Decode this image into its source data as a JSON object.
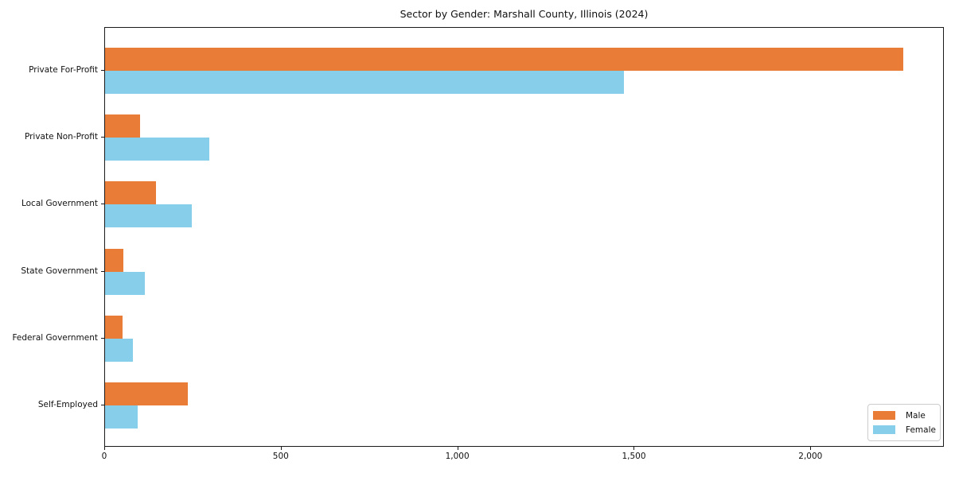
{
  "chart_data": {
    "type": "bar",
    "orientation": "horizontal",
    "title": "Sector by Gender: Marshall County, Illinois (2024)",
    "categories": [
      "Private For-Profit",
      "Private Non-Profit",
      "Local Government",
      "State Government",
      "Federal Government",
      "Self-Employed"
    ],
    "series": [
      {
        "name": "Male",
        "color": "#e97c36",
        "values": [
          2260,
          100,
          145,
          51,
          49,
          234
        ]
      },
      {
        "name": "Female",
        "color": "#87ceeb",
        "values": [
          1470,
          295,
          245,
          113,
          80,
          92
        ]
      }
    ],
    "xlabel": "",
    "ylabel": "",
    "xlim": [
      0,
      2378
    ],
    "x_ticks": [
      0,
      500,
      1000,
      1500,
      2000
    ],
    "x_tick_labels": [
      "0",
      "500",
      "1,000",
      "1,500",
      "2,000"
    ],
    "grid": false,
    "legend_position": "lower-right",
    "legend_entries": [
      "Male",
      "Female"
    ],
    "background_color": "#ffffff",
    "spine_color": "#1a1a1a"
  }
}
